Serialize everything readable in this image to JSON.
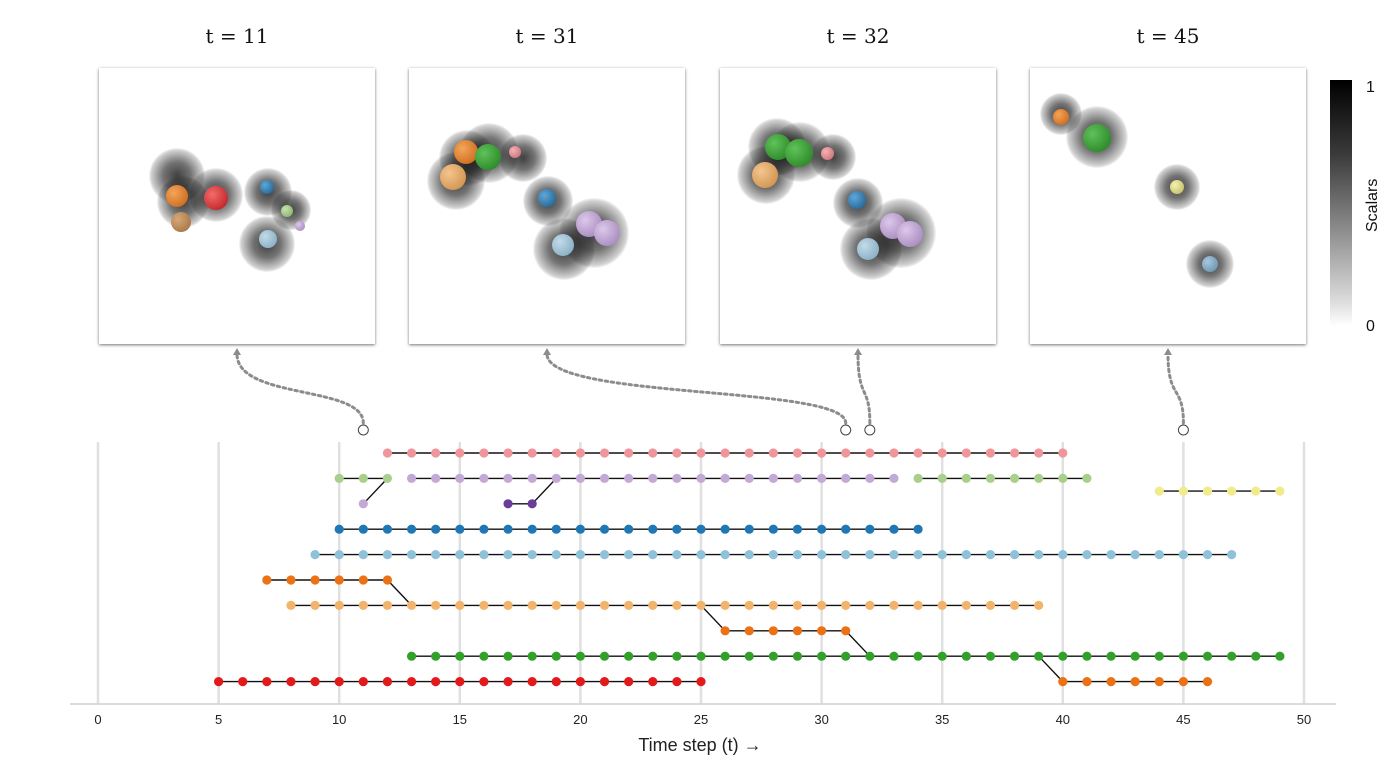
{
  "snapshots": [
    {
      "title": "t = 11",
      "t": 11,
      "ring_x": 11
    },
    {
      "title": "t = 31",
      "t": 31,
      "ring_x": 31
    },
    {
      "title": "t = 32",
      "t": 32,
      "ring_x": 32
    },
    {
      "title": "t = 45",
      "t": 45,
      "ring_x": 45
    }
  ],
  "colorbar": {
    "label": "Scalars",
    "max_label": "1",
    "min_label": "0"
  },
  "chart_data": {
    "type": "timeline",
    "xlabel": "Time step (t) →",
    "xlim": [
      0,
      50
    ],
    "xticks": [
      0,
      5,
      10,
      15,
      20,
      25,
      30,
      35,
      40,
      45,
      50
    ],
    "grid": true,
    "tracks": [
      {
        "row": 1,
        "color": "#f0959b",
        "start": 12,
        "end": 40
      },
      {
        "row": 2,
        "color": "#a8d08d",
        "start": 10,
        "end": 12
      },
      {
        "row": 2,
        "color": "#c3a9d6",
        "start": 13,
        "end": 33
      },
      {
        "row": 2,
        "color": "#a8d08d",
        "start": 34,
        "end": 41
      },
      {
        "row": 2,
        "color": "#f0ec8c",
        "start": 44,
        "end": 49,
        "row_offset": 0.5
      },
      {
        "row": 3,
        "color": "#c3a9d6",
        "start": 11,
        "end": 11
      },
      {
        "row": 3,
        "color": "#6a3d9a",
        "start": 17,
        "end": 18
      },
      {
        "row": 4,
        "color": "#1f78b4",
        "start": 10,
        "end": 34
      },
      {
        "row": 5,
        "color": "#8fc1d8",
        "start": 9,
        "end": 47
      },
      {
        "row": 6,
        "color": "#ec7014",
        "start": 7,
        "end": 12
      },
      {
        "row": 7,
        "color": "#f2b36d",
        "start": 8,
        "end": 39
      },
      {
        "row": 8,
        "color": "#ec7014",
        "start": 26,
        "end": 31
      },
      {
        "row": 9,
        "color": "#33a02c",
        "start": 13,
        "end": 49
      },
      {
        "row": 10,
        "color": "#e31a1c",
        "start": 5,
        "end": 25
      },
      {
        "row": 10,
        "color": "#ec7014",
        "start": 40,
        "end": 46
      }
    ],
    "links": [
      {
        "from": [
          11,
          3
        ],
        "to": [
          12,
          2
        ]
      },
      {
        "from": [
          18,
          3
        ],
        "to": [
          19,
          2
        ]
      },
      {
        "from": [
          12,
          6
        ],
        "to": [
          13,
          7
        ]
      },
      {
        "from": [
          25,
          7
        ],
        "to": [
          26,
          8
        ]
      },
      {
        "from": [
          31,
          8
        ],
        "to": [
          32,
          9
        ]
      },
      {
        "from": [
          39,
          9
        ],
        "to": [
          40,
          10
        ]
      }
    ]
  }
}
